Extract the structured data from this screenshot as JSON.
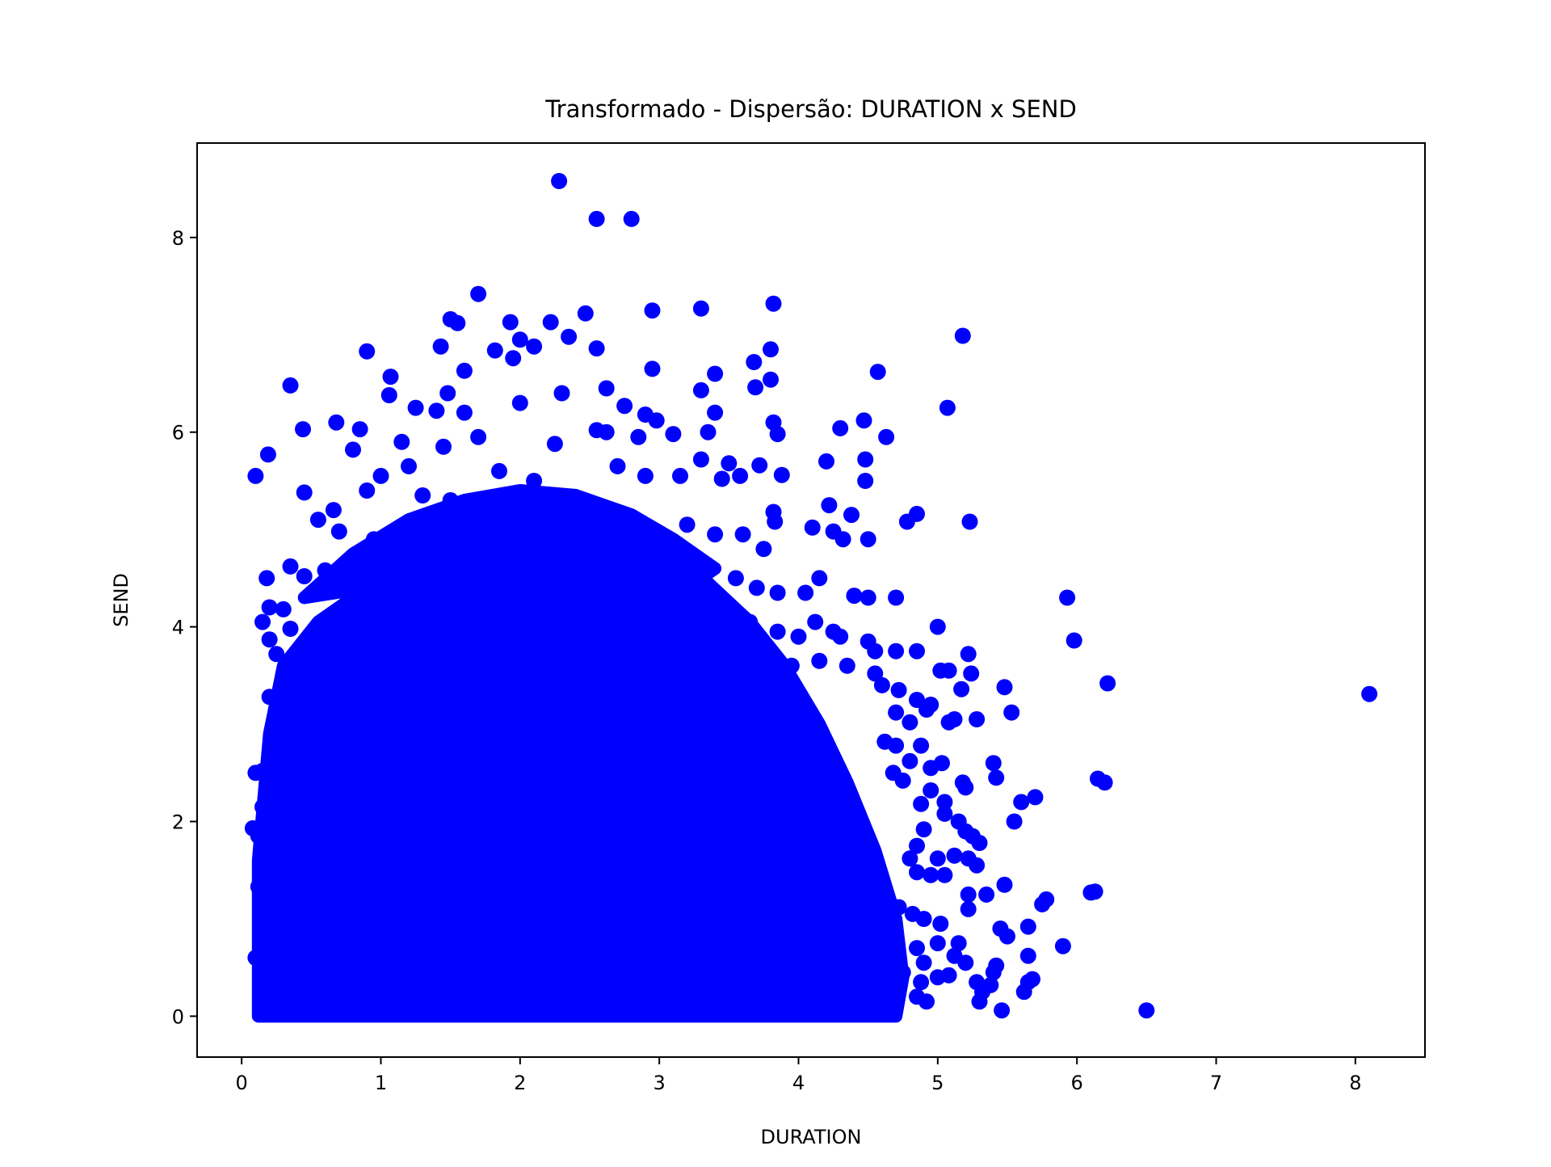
{
  "chart_data": {
    "type": "scatter",
    "title": "Transformado - Dispersão: DURATION x SEND",
    "xlabel": "DURATION",
    "ylabel": "SEND",
    "xlim": [
      -0.32,
      8.5
    ],
    "ylim": [
      -0.42,
      8.97
    ],
    "xticks": [
      0,
      1,
      2,
      3,
      4,
      5,
      6,
      7,
      8
    ],
    "yticks": [
      0,
      2,
      4,
      6,
      8
    ],
    "grid": false,
    "legend": "none",
    "color": "#0000ff",
    "series": [
      {
        "points": [
          [
            2.28,
            8.58
          ],
          [
            2.55,
            8.19
          ],
          [
            2.8,
            8.19
          ],
          [
            1.7,
            7.42
          ],
          [
            2.47,
            7.22
          ],
          [
            3.3,
            7.27
          ],
          [
            3.82,
            7.32
          ],
          [
            1.5,
            7.16
          ],
          [
            1.55,
            7.12
          ],
          [
            1.93,
            7.13
          ],
          [
            2.22,
            7.13
          ],
          [
            2.35,
            6.98
          ],
          [
            2.95,
            7.25
          ],
          [
            0.9,
            6.83
          ],
          [
            1.43,
            6.88
          ],
          [
            1.82,
            6.84
          ],
          [
            2.0,
            6.95
          ],
          [
            2.1,
            6.88
          ],
          [
            2.55,
            6.86
          ],
          [
            3.8,
            6.85
          ],
          [
            5.18,
            6.99
          ],
          [
            4.57,
            6.62
          ],
          [
            3.68,
            6.72
          ],
          [
            0.35,
            6.48
          ],
          [
            1.07,
            6.57
          ],
          [
            1.6,
            6.63
          ],
          [
            1.95,
            6.76
          ],
          [
            2.95,
            6.65
          ],
          [
            3.4,
            6.6
          ],
          [
            1.06,
            6.38
          ],
          [
            1.48,
            6.4
          ],
          [
            2.3,
            6.4
          ],
          [
            2.62,
            6.45
          ],
          [
            3.3,
            6.43
          ],
          [
            3.69,
            6.46
          ],
          [
            3.8,
            6.54
          ],
          [
            5.07,
            6.25
          ],
          [
            4.47,
            6.12
          ],
          [
            4.3,
            6.04
          ],
          [
            4.63,
            5.95
          ],
          [
            0.44,
            6.03
          ],
          [
            0.68,
            6.1
          ],
          [
            0.85,
            6.03
          ],
          [
            1.25,
            6.25
          ],
          [
            1.4,
            6.22
          ],
          [
            1.6,
            6.2
          ],
          [
            2.0,
            6.3
          ],
          [
            2.75,
            6.27
          ],
          [
            2.9,
            6.18
          ],
          [
            3.4,
            6.2
          ],
          [
            3.82,
            6.1
          ],
          [
            3.85,
            5.98
          ],
          [
            3.35,
            6.0
          ],
          [
            3.1,
            5.98
          ],
          [
            2.98,
            6.12
          ],
          [
            0.1,
            5.55
          ],
          [
            0.19,
            5.77
          ],
          [
            0.8,
            5.82
          ],
          [
            1.15,
            5.9
          ],
          [
            1.45,
            5.85
          ],
          [
            1.7,
            5.95
          ],
          [
            2.25,
            5.88
          ],
          [
            2.55,
            6.02
          ],
          [
            2.62,
            6.0
          ],
          [
            2.85,
            5.95
          ],
          [
            3.3,
            5.72
          ],
          [
            3.5,
            5.68
          ],
          [
            3.72,
            5.66
          ],
          [
            3.88,
            5.56
          ],
          [
            4.2,
            5.7
          ],
          [
            4.48,
            5.72
          ],
          [
            4.48,
            5.5
          ],
          [
            4.22,
            5.25
          ],
          [
            4.38,
            5.15
          ],
          [
            5.23,
            5.08
          ],
          [
            4.78,
            5.08
          ],
          [
            4.85,
            5.16
          ],
          [
            4.1,
            5.02
          ],
          [
            4.25,
            4.98
          ],
          [
            4.32,
            4.9
          ],
          [
            4.5,
            4.9
          ],
          [
            0.45,
            5.38
          ],
          [
            0.66,
            5.2
          ],
          [
            0.9,
            5.4
          ],
          [
            1.0,
            5.55
          ],
          [
            1.2,
            5.65
          ],
          [
            1.3,
            5.35
          ],
          [
            1.5,
            5.3
          ],
          [
            1.85,
            5.6
          ],
          [
            2.1,
            5.5
          ],
          [
            2.7,
            5.65
          ],
          [
            2.9,
            5.55
          ],
          [
            3.15,
            5.55
          ],
          [
            3.45,
            5.52
          ],
          [
            3.58,
            5.55
          ],
          [
            3.82,
            5.18
          ],
          [
            3.83,
            5.08
          ],
          [
            3.6,
            4.95
          ],
          [
            3.75,
            4.8
          ],
          [
            0.55,
            5.1
          ],
          [
            0.7,
            4.98
          ],
          [
            0.95,
            4.9
          ],
          [
            1.15,
            4.75
          ],
          [
            1.3,
            5.05
          ],
          [
            1.55,
            4.92
          ],
          [
            1.85,
            5.15
          ],
          [
            2.2,
            5.18
          ],
          [
            2.6,
            5.12
          ],
          [
            3.2,
            5.05
          ],
          [
            3.4,
            4.95
          ],
          [
            0.35,
            4.62
          ],
          [
            0.45,
            4.52
          ],
          [
            0.6,
            4.58
          ],
          [
            0.85,
            4.72
          ],
          [
            1.05,
            4.62
          ],
          [
            1.25,
            4.55
          ],
          [
            0.18,
            4.5
          ],
          [
            0.2,
            4.2
          ],
          [
            0.3,
            4.18
          ],
          [
            0.15,
            4.05
          ],
          [
            0.2,
            3.87
          ],
          [
            0.35,
            3.98
          ],
          [
            0.25,
            3.72
          ],
          [
            0.38,
            3.62
          ],
          [
            0.3,
            3.52
          ],
          [
            0.2,
            3.28
          ],
          [
            0.25,
            3.05
          ],
          [
            0.22,
            2.75
          ],
          [
            0.15,
            2.52
          ],
          [
            0.1,
            2.5
          ],
          [
            0.08,
            1.93
          ],
          [
            0.12,
            1.85
          ],
          [
            0.15,
            2.15
          ],
          [
            0.2,
            1.65
          ],
          [
            0.12,
            1.33
          ],
          [
            0.18,
            1.4
          ],
          [
            0.1,
            0.6
          ],
          [
            0.15,
            0.75
          ],
          [
            0.14,
            0.37
          ],
          [
            0.18,
            0.05
          ],
          [
            0.2,
            0.2
          ],
          [
            0.7,
            4.4
          ],
          [
            1.0,
            4.35
          ],
          [
            1.35,
            4.5
          ],
          [
            1.6,
            4.6
          ],
          [
            1.9,
            4.7
          ],
          [
            2.2,
            4.8
          ],
          [
            2.5,
            4.75
          ],
          [
            2.8,
            4.65
          ],
          [
            3.05,
            4.55
          ],
          [
            3.3,
            4.45
          ],
          [
            3.55,
            4.5
          ],
          [
            3.7,
            4.4
          ],
          [
            3.85,
            4.35
          ],
          [
            4.05,
            4.35
          ],
          [
            4.15,
            4.5
          ],
          [
            4.4,
            4.32
          ],
          [
            4.5,
            4.3
          ],
          [
            4.7,
            4.3
          ],
          [
            0.55,
            4.0
          ],
          [
            0.8,
            4.05
          ],
          [
            1.05,
            4.15
          ],
          [
            1.3,
            4.2
          ],
          [
            1.6,
            4.25
          ],
          [
            1.9,
            4.3
          ],
          [
            2.2,
            4.35
          ],
          [
            2.5,
            4.4
          ],
          [
            2.8,
            4.3
          ],
          [
            3.1,
            4.2
          ],
          [
            3.4,
            4.15
          ],
          [
            3.65,
            4.05
          ],
          [
            3.85,
            3.95
          ],
          [
            4.0,
            3.9
          ],
          [
            4.12,
            4.05
          ],
          [
            4.25,
            3.95
          ],
          [
            4.3,
            3.9
          ],
          [
            4.5,
            3.85
          ],
          [
            4.55,
            3.75
          ],
          [
            4.7,
            3.75
          ],
          [
            4.85,
            3.75
          ],
          [
            5.0,
            4.0
          ],
          [
            5.93,
            4.3
          ],
          [
            5.98,
            3.86
          ],
          [
            6.22,
            3.42
          ],
          [
            8.1,
            3.31
          ],
          [
            0.45,
            3.7
          ],
          [
            0.7,
            3.75
          ],
          [
            0.95,
            3.8
          ],
          [
            1.2,
            3.85
          ],
          [
            1.45,
            3.9
          ],
          [
            1.75,
            3.95
          ],
          [
            2.05,
            4.0
          ],
          [
            2.35,
            4.05
          ],
          [
            2.65,
            4.0
          ],
          [
            2.95,
            3.95
          ],
          [
            3.25,
            3.85
          ],
          [
            3.5,
            3.75
          ],
          [
            3.75,
            3.65
          ],
          [
            3.95,
            3.6
          ],
          [
            4.15,
            3.65
          ],
          [
            4.35,
            3.6
          ],
          [
            4.55,
            3.52
          ],
          [
            4.6,
            3.4
          ],
          [
            4.72,
            3.35
          ],
          [
            5.02,
            3.55
          ],
          [
            5.08,
            3.55
          ],
          [
            5.22,
            3.72
          ],
          [
            5.24,
            3.52
          ],
          [
            5.17,
            3.36
          ],
          [
            5.48,
            3.38
          ],
          [
            4.85,
            3.25
          ],
          [
            4.95,
            3.2
          ],
          [
            4.92,
            3.15
          ],
          [
            4.7,
            3.12
          ],
          [
            4.8,
            3.02
          ],
          [
            5.08,
            3.02
          ],
          [
            5.12,
            3.05
          ],
          [
            5.28,
            3.05
          ],
          [
            5.53,
            3.12
          ],
          [
            4.62,
            2.82
          ],
          [
            4.7,
            2.78
          ],
          [
            4.88,
            2.78
          ],
          [
            4.8,
            2.62
          ],
          [
            4.68,
            2.5
          ],
          [
            4.75,
            2.42
          ],
          [
            4.95,
            2.55
          ],
          [
            5.03,
            2.6
          ],
          [
            5.18,
            2.4
          ],
          [
            5.2,
            2.35
          ],
          [
            5.4,
            2.6
          ],
          [
            5.42,
            2.45
          ],
          [
            4.95,
            2.32
          ],
          [
            4.88,
            2.18
          ],
          [
            5.05,
            2.2
          ],
          [
            5.05,
            2.08
          ],
          [
            5.15,
            2.0
          ],
          [
            5.2,
            1.9
          ],
          [
            5.25,
            1.85
          ],
          [
            5.3,
            1.78
          ],
          [
            5.6,
            2.2
          ],
          [
            5.7,
            2.25
          ],
          [
            5.55,
            2.0
          ],
          [
            6.15,
            2.44
          ],
          [
            6.2,
            2.4
          ],
          [
            4.9,
            1.92
          ],
          [
            4.85,
            1.75
          ],
          [
            5.0,
            1.62
          ],
          [
            5.12,
            1.65
          ],
          [
            5.22,
            1.62
          ],
          [
            5.28,
            1.55
          ],
          [
            4.8,
            1.62
          ],
          [
            4.85,
            1.48
          ],
          [
            4.95,
            1.45
          ],
          [
            5.05,
            1.45
          ],
          [
            5.48,
            1.35
          ],
          [
            5.35,
            1.25
          ],
          [
            5.22,
            1.25
          ],
          [
            5.22,
            1.1
          ],
          [
            5.78,
            1.2
          ],
          [
            5.75,
            1.15
          ],
          [
            6.1,
            1.27
          ],
          [
            6.13,
            1.28
          ],
          [
            4.72,
            1.12
          ],
          [
            4.82,
            1.05
          ],
          [
            4.9,
            1.0
          ],
          [
            5.02,
            0.95
          ],
          [
            5.45,
            0.9
          ],
          [
            5.5,
            0.82
          ],
          [
            5.65,
            0.92
          ],
          [
            4.55,
            0.9
          ],
          [
            4.7,
            0.85
          ],
          [
            4.85,
            0.7
          ],
          [
            5.0,
            0.75
          ],
          [
            5.15,
            0.75
          ],
          [
            5.12,
            0.62
          ],
          [
            5.2,
            0.55
          ],
          [
            5.4,
            0.45
          ],
          [
            5.42,
            0.52
          ],
          [
            5.65,
            0.62
          ],
          [
            5.9,
            0.72
          ],
          [
            4.9,
            0.55
          ],
          [
            4.75,
            0.45
          ],
          [
            4.88,
            0.35
          ],
          [
            5.0,
            0.4
          ],
          [
            5.08,
            0.42
          ],
          [
            5.28,
            0.35
          ],
          [
            5.32,
            0.25
          ],
          [
            5.3,
            0.15
          ],
          [
            5.38,
            0.32
          ],
          [
            5.62,
            0.25
          ],
          [
            5.65,
            0.35
          ],
          [
            5.68,
            0.38
          ],
          [
            5.46,
            0.06
          ],
          [
            6.5,
            0.06
          ],
          [
            4.85,
            0.2
          ],
          [
            4.92,
            0.15
          ],
          [
            4.6,
            0.1
          ],
          [
            4.68,
            0.25
          ],
          [
            4.5,
            0.05
          ]
        ]
      }
    ]
  }
}
